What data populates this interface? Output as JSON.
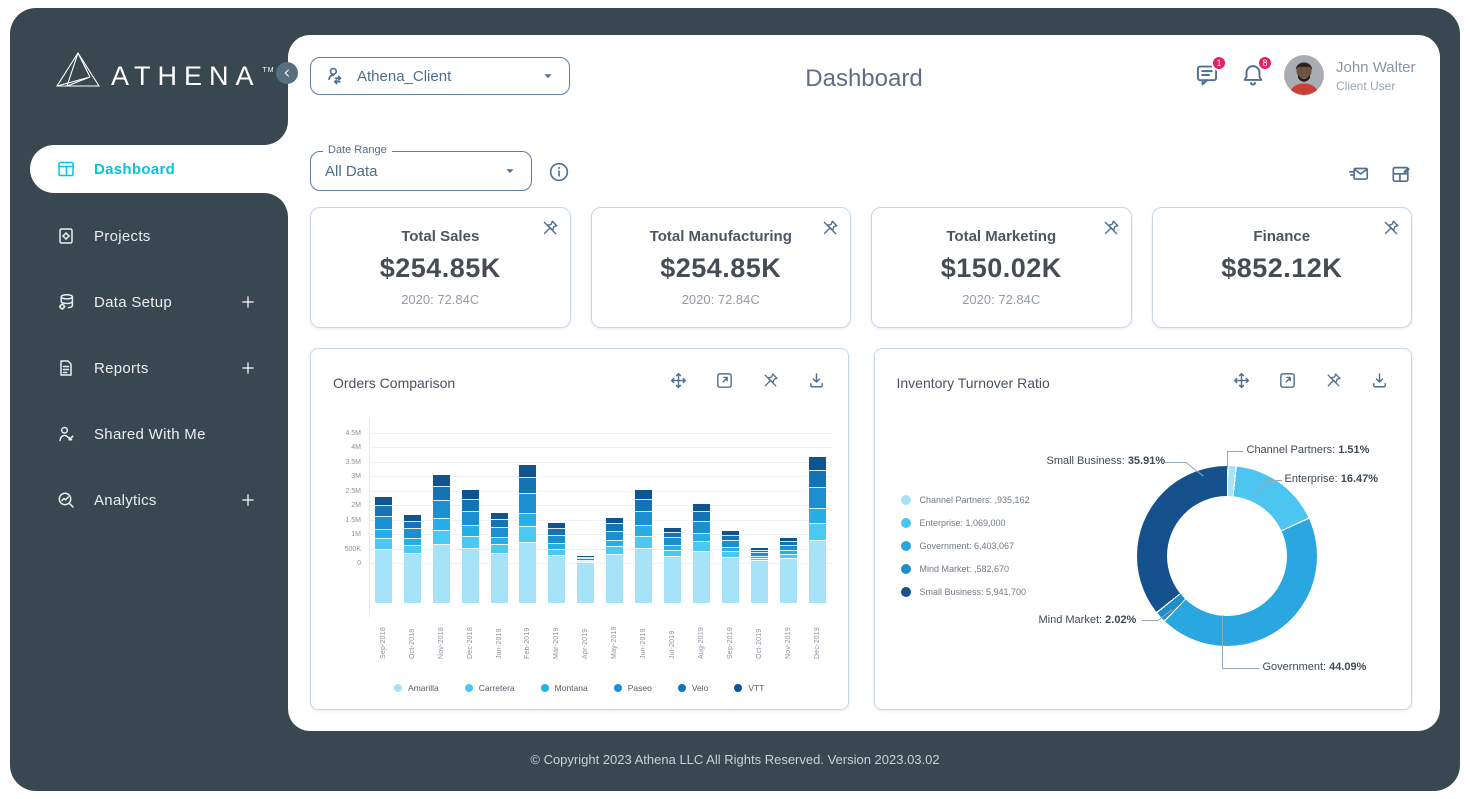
{
  "app": {
    "brand": "ATHENA",
    "tm": "TM"
  },
  "sidebar": {
    "items": [
      {
        "label": "Dashboard",
        "active": true,
        "expandable": false
      },
      {
        "label": "Projects",
        "active": false,
        "expandable": false
      },
      {
        "label": "Data Setup",
        "active": false,
        "expandable": true
      },
      {
        "label": "Reports",
        "active": false,
        "expandable": true
      },
      {
        "label": "Shared With Me",
        "active": false,
        "expandable": false
      },
      {
        "label": "Analytics",
        "active": false,
        "expandable": true
      }
    ]
  },
  "header": {
    "client_selector": "Athena_Client",
    "title": "Dashboard",
    "message_badge": "1",
    "notification_badge": "8",
    "user_name": "John Walter",
    "user_role": "Client User"
  },
  "filters": {
    "date_range_label": "Date Range",
    "date_range_value": "All Data"
  },
  "kpis": [
    {
      "title": "Total Sales",
      "value": "$254.85K",
      "subtitle": "2020: 72.84C"
    },
    {
      "title": "Total Manufacturing",
      "value": "$254.85K",
      "subtitle": "2020: 72.84C"
    },
    {
      "title": "Total Marketing",
      "value": "$150.02K",
      "subtitle": "2020: 72.84C"
    },
    {
      "title": "Finance",
      "value": "$852.12K",
      "subtitle": ""
    }
  ],
  "panels": {
    "orders_title": "Orders Comparison",
    "inventory_title": "Inventory Turnover Ratio"
  },
  "footer": {
    "text": "© Copyright 2023 Athena LLC All Rights Reserved. Version 2023.03.02"
  },
  "colors": {
    "accent_cyan": "#06c3de",
    "sidebar_bg": "#394750",
    "badge_pink": "#e91d62",
    "icon_slate": "#51708f",
    "card_border": "#c9d6e8"
  },
  "chart_data": [
    {
      "type": "bar",
      "stacked": true,
      "title": "Orders Comparison",
      "grid": true,
      "legend_position": "bottom",
      "ylim_label": [
        "0",
        "4.5M"
      ],
      "yticks": [
        {
          "label": "4.5M",
          "value": 4.5
        },
        {
          "label": "4M",
          "value": 4.0
        },
        {
          "label": "3.5M",
          "value": 3.5
        },
        {
          "label": "3M",
          "value": 3.0
        },
        {
          "label": "2.5M",
          "value": 2.5
        },
        {
          "label": "2M",
          "value": 2.0
        },
        {
          "label": "1.5M",
          "value": 1.5
        },
        {
          "label": "1M",
          "value": 1.0
        },
        {
          "label": "500K",
          "value": 0.5
        },
        {
          "label": "0",
          "value": 0
        }
      ],
      "unit": "millions",
      "categories": [
        "Sep-2018",
        "Oct-2018",
        "Nov-2018",
        "Dec-2018",
        "Jan-2019",
        "Feb-2019",
        "Mar-2019",
        "Apr-2019",
        "May-2019",
        "Jun-2019",
        "Jul-2019",
        "Aug-2019",
        "Sep-2019",
        "Oct-2019",
        "Nov-2019",
        "Dec-2019"
      ],
      "series": [
        {
          "name": "Amarilla",
          "color": "#a7e3f8",
          "values": [
            0.51,
            0.37,
            0.67,
            0.56,
            0.39,
            0.75,
            0.31,
            0.06,
            0.35,
            0.56,
            0.28,
            0.45,
            0.25,
            0.12,
            0.2,
            0.81
          ]
        },
        {
          "name": "Carretera",
          "color": "#4cc9f2",
          "values": [
            0.37,
            0.27,
            0.49,
            0.41,
            0.28,
            0.54,
            0.22,
            0.04,
            0.26,
            0.41,
            0.2,
            0.33,
            0.18,
            0.09,
            0.14,
            0.59
          ]
        },
        {
          "name": "Montana",
          "color": "#26aee6",
          "values": [
            0.32,
            0.24,
            0.43,
            0.36,
            0.25,
            0.48,
            0.2,
            0.04,
            0.22,
            0.36,
            0.18,
            0.29,
            0.16,
            0.08,
            0.13,
            0.52
          ]
        },
        {
          "name": "Paseo",
          "color": "#1b8fd0",
          "values": [
            0.46,
            0.34,
            0.61,
            0.51,
            0.35,
            0.68,
            0.28,
            0.05,
            0.32,
            0.51,
            0.25,
            0.41,
            0.23,
            0.11,
            0.18,
            0.74
          ]
        },
        {
          "name": "Velo",
          "color": "#1473b4",
          "values": [
            0.37,
            0.27,
            0.49,
            0.41,
            0.28,
            0.54,
            0.22,
            0.04,
            0.26,
            0.41,
            0.2,
            0.33,
            0.18,
            0.09,
            0.14,
            0.59
          ]
        },
        {
          "name": "VTT",
          "color": "#0d5491",
          "values": [
            0.27,
            0.21,
            0.36,
            0.3,
            0.2,
            0.41,
            0.17,
            0.02,
            0.19,
            0.3,
            0.14,
            0.24,
            0.13,
            0.06,
            0.11,
            0.45
          ]
        }
      ]
    },
    {
      "type": "donut",
      "title": "Inventory Turnover Ratio",
      "legend_position": "left",
      "segments": [
        {
          "label": "Channel Partners",
          "amount": ",935,162",
          "pct": 1.51,
          "pct_text": "1.51%",
          "color": "#a7e3f8"
        },
        {
          "label": "Enterprise",
          "amount": "1,069,000",
          "pct": 16.47,
          "pct_text": "16.47%",
          "color": "#4cc6f0"
        },
        {
          "label": "Government",
          "amount": "6,403,067",
          "pct": 44.09,
          "pct_text": "44.09%",
          "color": "#2aa7e0"
        },
        {
          "label": "Mind Market",
          "amount": ",582,670",
          "pct": 2.02,
          "pct_text": "2.02%",
          "color": "#1e8dc9"
        },
        {
          "label": "Small Business",
          "amount": "5,941,700",
          "pct": 35.91,
          "pct_text": "35.91%",
          "color": "#14518d"
        }
      ]
    }
  ]
}
